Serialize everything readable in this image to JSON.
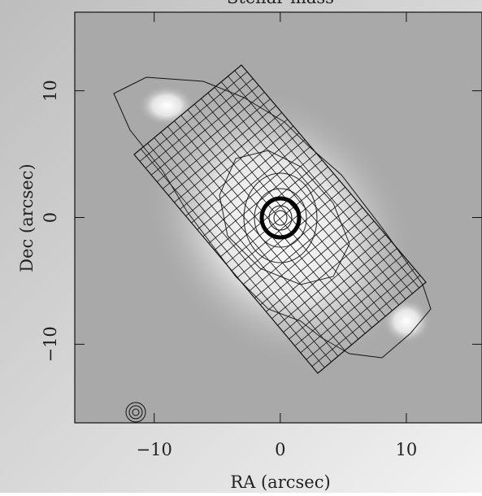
{
  "chart_data": {
    "type": "image",
    "title": "Stellar mass",
    "xlabel": "RA (arcsec)",
    "ylabel": "Dec (arcsec)",
    "xlim": [
      -16.3,
      16
    ],
    "ylim": [
      -16.2,
      16.2
    ],
    "xticks": [
      {
        "value": -10,
        "label": "−10"
      },
      0,
      10
    ],
    "yticks": [
      {
        "value": -10,
        "label": "−10"
      },
      0,
      10
    ]
  }
}
